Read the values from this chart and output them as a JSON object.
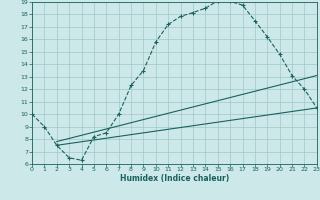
{
  "xlabel": "Humidex (Indice chaleur)",
  "bg_color": "#cde8e8",
  "line_color": "#1a6060",
  "grid_color": "#a0c8c8",
  "xlim": [
    0,
    23
  ],
  "ylim": [
    6,
    19
  ],
  "xticks": [
    0,
    1,
    2,
    3,
    4,
    5,
    6,
    7,
    8,
    9,
    10,
    11,
    12,
    13,
    14,
    15,
    16,
    17,
    18,
    19,
    20,
    21,
    22,
    23
  ],
  "yticks": [
    6,
    7,
    8,
    9,
    10,
    11,
    12,
    13,
    14,
    15,
    16,
    17,
    18,
    19
  ],
  "curve1_x": [
    0,
    1,
    2,
    3,
    4,
    5,
    6,
    7,
    8,
    9,
    10,
    11,
    12,
    13,
    14,
    15,
    16,
    17,
    18,
    19,
    20,
    21,
    22,
    23
  ],
  "curve1_y": [
    10,
    9,
    7.5,
    6.5,
    6.3,
    8.2,
    8.5,
    10.0,
    12.3,
    13.5,
    15.8,
    17.2,
    17.85,
    18.15,
    18.5,
    19.1,
    19.05,
    18.75,
    17.5,
    16.2,
    14.8,
    13.1,
    12.0,
    10.5
  ],
  "line2_x": [
    2,
    23
  ],
  "line2_y": [
    7.8,
    13.1
  ],
  "line3_x": [
    2,
    23
  ],
  "line3_y": [
    7.5,
    10.5
  ]
}
